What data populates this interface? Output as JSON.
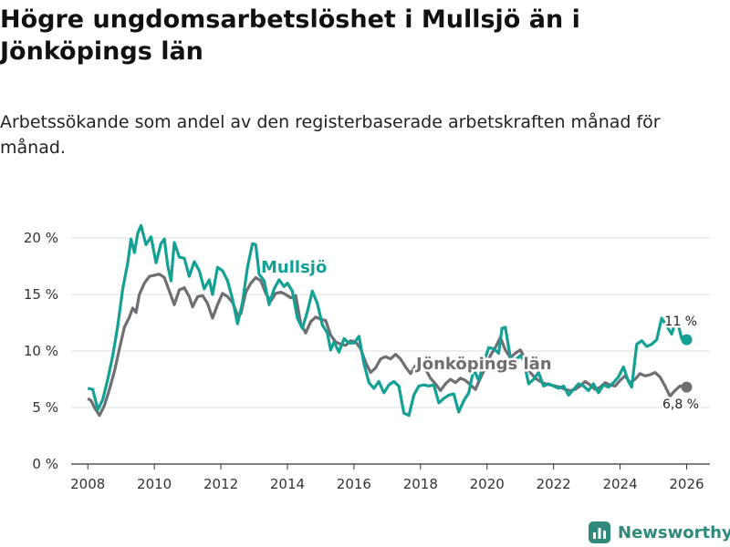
{
  "header": {
    "title": "Högre ungdomsarbetslöshet i Mullsjö än i Jönköpings län",
    "subtitle": "Arbetssökande som andel av den registerbaserade arbetskraften månad för månad."
  },
  "brand": {
    "name": "Newsworthy",
    "icon": "bar-chart-icon"
  },
  "colors": {
    "mullsjo": "#13a095",
    "lan": "#6e6e73",
    "grid": "#dddddd",
    "axis": "#333333",
    "text": "#333333",
    "brand": "#2f8a7c"
  },
  "chart_data": {
    "type": "line",
    "title": "Högre ungdomsarbetslöshet i Mullsjö än i Jönköpings län",
    "xlabel": "",
    "ylabel": "",
    "xlim": [
      2007.5,
      2026.7
    ],
    "ylim": [
      0,
      20
    ],
    "grid": true,
    "legend": "inline labels",
    "y_ticks": [
      0,
      5,
      10,
      15,
      20
    ],
    "y_tick_labels": [
      "0 %",
      "5 %",
      "10 %",
      "15 %",
      "20 %"
    ],
    "x_ticks": [
      2008,
      2010,
      2012,
      2014,
      2016,
      2018,
      2020,
      2022,
      2024,
      2026
    ],
    "x_tick_labels": [
      "2008",
      "2010",
      "2012",
      "2014",
      "2016",
      "2018",
      "2020",
      "2022",
      "2024",
      "2026"
    ],
    "series": [
      {
        "name": "Jönköpings län",
        "label": "Jönköpings län",
        "end_label": "6,8 %",
        "end_value": 6.8,
        "points": [
          [
            2008.0,
            5.8
          ],
          [
            2008.1,
            5.6
          ],
          [
            2008.2,
            5.0
          ],
          [
            2008.35,
            4.3
          ],
          [
            2008.5,
            5.2
          ],
          [
            2008.65,
            6.6
          ],
          [
            2008.8,
            8.2
          ],
          [
            2008.95,
            10.2
          ],
          [
            2009.1,
            12.1
          ],
          [
            2009.25,
            13.0
          ],
          [
            2009.35,
            13.8
          ],
          [
            2009.45,
            13.4
          ],
          [
            2009.55,
            15.0
          ],
          [
            2009.7,
            16.0
          ],
          [
            2009.85,
            16.6
          ],
          [
            2010.0,
            16.7
          ],
          [
            2010.15,
            16.8
          ],
          [
            2010.3,
            16.5
          ],
          [
            2010.45,
            15.3
          ],
          [
            2010.6,
            14.1
          ],
          [
            2010.75,
            15.4
          ],
          [
            2010.9,
            15.6
          ],
          [
            2011.05,
            14.8
          ],
          [
            2011.15,
            13.9
          ],
          [
            2011.3,
            14.8
          ],
          [
            2011.45,
            14.9
          ],
          [
            2011.6,
            14.2
          ],
          [
            2011.75,
            12.9
          ],
          [
            2011.9,
            14.1
          ],
          [
            2012.05,
            15.1
          ],
          [
            2012.2,
            14.8
          ],
          [
            2012.35,
            14.3
          ],
          [
            2012.5,
            13.2
          ],
          [
            2012.6,
            13.3
          ],
          [
            2012.75,
            15.2
          ],
          [
            2012.9,
            16.0
          ],
          [
            2013.05,
            16.5
          ],
          [
            2013.2,
            16.2
          ],
          [
            2013.35,
            15.1
          ],
          [
            2013.5,
            14.4
          ],
          [
            2013.65,
            15.1
          ],
          [
            2013.8,
            15.2
          ],
          [
            2013.95,
            15.0
          ],
          [
            2014.1,
            14.7
          ],
          [
            2014.25,
            14.9
          ],
          [
            2014.4,
            12.4
          ],
          [
            2014.55,
            11.6
          ],
          [
            2014.7,
            12.6
          ],
          [
            2014.85,
            13.0
          ],
          [
            2015.0,
            12.8
          ],
          [
            2015.15,
            12.7
          ],
          [
            2015.3,
            11.4
          ],
          [
            2015.45,
            10.8
          ],
          [
            2015.6,
            10.6
          ],
          [
            2015.75,
            10.5
          ],
          [
            2015.9,
            10.9
          ],
          [
            2016.05,
            10.8
          ],
          [
            2016.2,
            10.2
          ],
          [
            2016.35,
            9.0
          ],
          [
            2016.5,
            8.1
          ],
          [
            2016.65,
            8.5
          ],
          [
            2016.8,
            9.3
          ],
          [
            2016.95,
            9.5
          ],
          [
            2017.1,
            9.3
          ],
          [
            2017.25,
            9.7
          ],
          [
            2017.4,
            9.3
          ],
          [
            2017.55,
            8.6
          ],
          [
            2017.7,
            8.0
          ],
          [
            2017.85,
            8.7
          ],
          [
            2018.0,
            8.9
          ],
          [
            2018.15,
            8.4
          ],
          [
            2018.3,
            7.6
          ],
          [
            2018.45,
            7.1
          ],
          [
            2018.6,
            6.5
          ],
          [
            2018.75,
            7.1
          ],
          [
            2018.9,
            7.5
          ],
          [
            2019.05,
            7.2
          ],
          [
            2019.2,
            7.6
          ],
          [
            2019.35,
            7.4
          ],
          [
            2019.5,
            7.0
          ],
          [
            2019.65,
            6.6
          ],
          [
            2019.8,
            7.6
          ],
          [
            2019.95,
            8.5
          ],
          [
            2020.1,
            9.6
          ],
          [
            2020.25,
            10.3
          ],
          [
            2020.4,
            11.2
          ],
          [
            2020.55,
            10.1
          ],
          [
            2020.7,
            9.4
          ],
          [
            2020.85,
            9.8
          ],
          [
            2021.0,
            10.1
          ],
          [
            2021.15,
            9.3
          ],
          [
            2021.3,
            8.1
          ],
          [
            2021.45,
            7.6
          ],
          [
            2021.6,
            7.3
          ],
          [
            2021.75,
            7.1
          ],
          [
            2021.9,
            7.0
          ],
          [
            2022.05,
            6.9
          ],
          [
            2022.2,
            6.8
          ],
          [
            2022.35,
            6.6
          ],
          [
            2022.5,
            6.5
          ],
          [
            2022.65,
            6.6
          ],
          [
            2022.8,
            6.9
          ],
          [
            2022.95,
            7.3
          ],
          [
            2023.1,
            7.0
          ],
          [
            2023.25,
            6.6
          ],
          [
            2023.4,
            6.8
          ],
          [
            2023.55,
            7.2
          ],
          [
            2023.7,
            7.0
          ],
          [
            2023.85,
            6.9
          ],
          [
            2024.0,
            7.4
          ],
          [
            2024.15,
            7.8
          ],
          [
            2024.3,
            7.2
          ],
          [
            2024.45,
            7.5
          ],
          [
            2024.6,
            8.0
          ],
          [
            2024.75,
            7.8
          ],
          [
            2024.9,
            7.9
          ],
          [
            2025.05,
            8.1
          ],
          [
            2025.2,
            7.7
          ],
          [
            2025.35,
            6.9
          ],
          [
            2025.5,
            6.0
          ],
          [
            2025.65,
            6.5
          ],
          [
            2025.8,
            6.9
          ],
          [
            2025.95,
            6.8
          ],
          [
            2026.0,
            6.8
          ]
        ]
      },
      {
        "name": "Mullsjö",
        "label": "Mullsjö",
        "end_label": "11 %",
        "end_value": 11.0,
        "points": [
          [
            2008.0,
            6.7
          ],
          [
            2008.15,
            6.6
          ],
          [
            2008.3,
            4.8
          ],
          [
            2008.45,
            5.7
          ],
          [
            2008.6,
            7.5
          ],
          [
            2008.75,
            9.6
          ],
          [
            2008.9,
            12.2
          ],
          [
            2009.05,
            15.5
          ],
          [
            2009.2,
            17.8
          ],
          [
            2009.3,
            19.9
          ],
          [
            2009.4,
            18.7
          ],
          [
            2009.5,
            20.4
          ],
          [
            2009.6,
            21.1
          ],
          [
            2009.75,
            19.4
          ],
          [
            2009.9,
            20.1
          ],
          [
            2010.05,
            17.8
          ],
          [
            2010.2,
            19.5
          ],
          [
            2010.3,
            19.9
          ],
          [
            2010.4,
            17.6
          ],
          [
            2010.5,
            16.2
          ],
          [
            2010.6,
            19.6
          ],
          [
            2010.75,
            18.3
          ],
          [
            2010.9,
            18.2
          ],
          [
            2011.05,
            16.6
          ],
          [
            2011.2,
            17.9
          ],
          [
            2011.35,
            17.1
          ],
          [
            2011.5,
            15.5
          ],
          [
            2011.65,
            16.3
          ],
          [
            2011.75,
            15.0
          ],
          [
            2011.9,
            17.4
          ],
          [
            2012.05,
            17.1
          ],
          [
            2012.2,
            16.2
          ],
          [
            2012.35,
            14.6
          ],
          [
            2012.5,
            12.4
          ],
          [
            2012.65,
            14.3
          ],
          [
            2012.8,
            17.4
          ],
          [
            2012.95,
            19.5
          ],
          [
            2013.05,
            19.4
          ],
          [
            2013.15,
            16.8
          ],
          [
            2013.3,
            16.2
          ],
          [
            2013.45,
            14.1
          ],
          [
            2013.6,
            15.5
          ],
          [
            2013.75,
            16.3
          ],
          [
            2013.9,
            15.7
          ],
          [
            2014.0,
            16.0
          ],
          [
            2014.15,
            15.3
          ],
          [
            2014.3,
            12.9
          ],
          [
            2014.45,
            12.0
          ],
          [
            2014.6,
            13.5
          ],
          [
            2014.75,
            15.3
          ],
          [
            2014.9,
            14.2
          ],
          [
            2015.05,
            12.3
          ],
          [
            2015.2,
            11.6
          ],
          [
            2015.3,
            10.1
          ],
          [
            2015.4,
            10.8
          ],
          [
            2015.55,
            9.9
          ],
          [
            2015.7,
            11.1
          ],
          [
            2015.85,
            10.7
          ],
          [
            2016.0,
            10.7
          ],
          [
            2016.15,
            11.3
          ],
          [
            2016.3,
            8.9
          ],
          [
            2016.45,
            7.2
          ],
          [
            2016.6,
            6.7
          ],
          [
            2016.75,
            7.3
          ],
          [
            2016.9,
            6.3
          ],
          [
            2017.05,
            7.0
          ],
          [
            2017.2,
            7.3
          ],
          [
            2017.35,
            6.9
          ],
          [
            2017.5,
            4.5
          ],
          [
            2017.65,
            4.3
          ],
          [
            2017.8,
            6.1
          ],
          [
            2017.95,
            6.9
          ],
          [
            2018.1,
            7.0
          ],
          [
            2018.25,
            6.9
          ],
          [
            2018.4,
            7.0
          ],
          [
            2018.55,
            5.4
          ],
          [
            2018.7,
            5.8
          ],
          [
            2018.85,
            6.1
          ],
          [
            2019.0,
            6.2
          ],
          [
            2019.15,
            4.6
          ],
          [
            2019.3,
            5.6
          ],
          [
            2019.45,
            6.3
          ],
          [
            2019.6,
            8.4
          ],
          [
            2019.75,
            7.4
          ],
          [
            2019.9,
            9.0
          ],
          [
            2020.05,
            10.3
          ],
          [
            2020.2,
            10.2
          ],
          [
            2020.35,
            9.8
          ],
          [
            2020.45,
            12.0
          ],
          [
            2020.55,
            12.1
          ],
          [
            2020.7,
            9.4
          ],
          [
            2020.85,
            9.2
          ],
          [
            2021.0,
            9.6
          ],
          [
            2021.1,
            9.2
          ],
          [
            2021.25,
            7.1
          ],
          [
            2021.4,
            7.5
          ],
          [
            2021.55,
            8.1
          ],
          [
            2021.7,
            6.9
          ],
          [
            2021.85,
            7.1
          ],
          [
            2022.0,
            6.9
          ],
          [
            2022.15,
            6.7
          ],
          [
            2022.3,
            6.9
          ],
          [
            2022.45,
            6.1
          ],
          [
            2022.6,
            6.6
          ],
          [
            2022.75,
            7.1
          ],
          [
            2022.9,
            6.9
          ],
          [
            2023.05,
            6.5
          ],
          [
            2023.2,
            7.1
          ],
          [
            2023.35,
            6.3
          ],
          [
            2023.5,
            7.0
          ],
          [
            2023.65,
            6.8
          ],
          [
            2023.8,
            7.2
          ],
          [
            2023.95,
            7.7
          ],
          [
            2024.1,
            8.6
          ],
          [
            2024.25,
            7.3
          ],
          [
            2024.35,
            6.8
          ],
          [
            2024.5,
            10.6
          ],
          [
            2024.65,
            10.9
          ],
          [
            2024.8,
            10.4
          ],
          [
            2024.95,
            10.6
          ],
          [
            2025.1,
            11.0
          ],
          [
            2025.25,
            12.9
          ],
          [
            2025.4,
            12.2
          ],
          [
            2025.55,
            11.5
          ],
          [
            2025.7,
            12.9
          ],
          [
            2025.85,
            11.1
          ],
          [
            2026.0,
            11.0
          ]
        ]
      }
    ]
  }
}
